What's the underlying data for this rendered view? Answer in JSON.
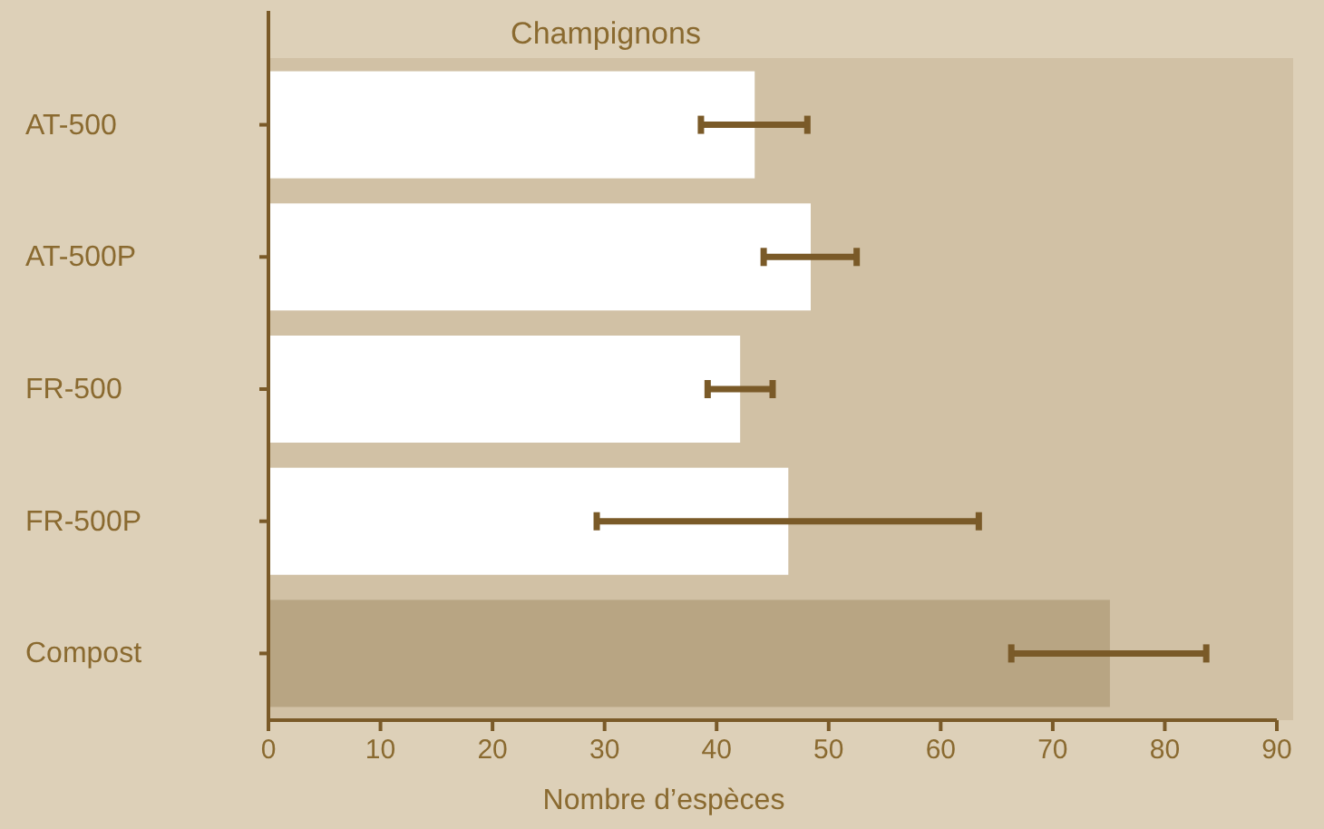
{
  "chart_data": {
    "type": "bar",
    "orientation": "horizontal",
    "title": "Champignons",
    "xlabel": "Nombre d’espèces",
    "categories": [
      "AT-500",
      "AT-500P",
      "FR-500",
      "FR-500P",
      "Compost"
    ],
    "values": [
      43.4,
      48.4,
      42.1,
      46.4,
      75.1
    ],
    "colors": [
      "#ffffff",
      "#ffffff",
      "#ffffff",
      "#ffffff",
      "#b8a583"
    ],
    "errors": [
      [
        38.6,
        48.1
      ],
      [
        44.2,
        52.5
      ],
      [
        39.2,
        45.0
      ],
      [
        29.3,
        63.4
      ],
      [
        66.3,
        83.7
      ]
    ],
    "xlim": [
      0,
      90
    ],
    "xticks": [
      0,
      10,
      20,
      30,
      40,
      50,
      60,
      70,
      80,
      90
    ],
    "grid": false
  }
}
